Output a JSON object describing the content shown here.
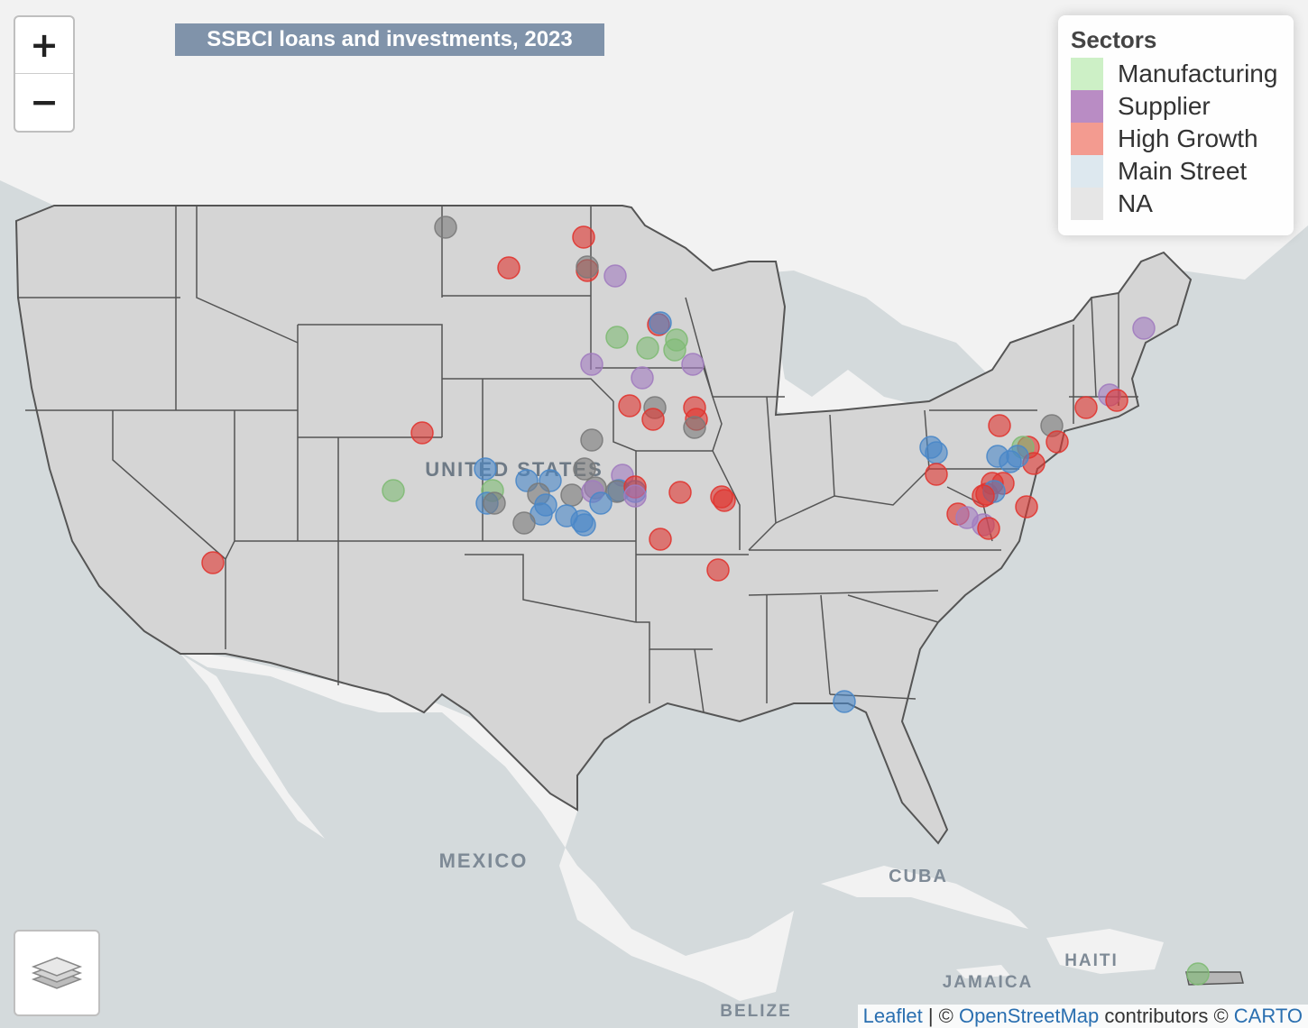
{
  "title": "SSBCI loans and investments, 2023",
  "zoom": {
    "in_label": "+",
    "out_label": "−"
  },
  "legend": {
    "title": "Sectors",
    "items": [
      {
        "label": "Manufacturing",
        "color": "#cdf0c6"
      },
      {
        "label": "Supplier",
        "color": "#b98cc4"
      },
      {
        "label": "High Growth",
        "color": "#f39b90"
      },
      {
        "label": "Main Street",
        "color": "#dde8ef"
      },
      {
        "label": "NA",
        "color": "#e6e6e6"
      }
    ]
  },
  "map_labels": {
    "country": "UNITED STATES",
    "mexico": "MEXICO",
    "cuba": "CUBA",
    "haiti": "HAITI",
    "jamaica": "JAMAICA",
    "belize": "BELIZE"
  },
  "attribution": {
    "leaflet": "Leaflet",
    "sep1": " | © ",
    "osm": "OpenStreetMap",
    "mid": " contributors © ",
    "carto": "CARTO"
  },
  "marker_colors": {
    "red": "#e03530",
    "blue": "#4a87c8",
    "purple": "#a17cbf",
    "green": "#7fba74",
    "gray": "#7a7a7a"
  },
  "icons": {
    "layers": "layers-icon"
  }
}
